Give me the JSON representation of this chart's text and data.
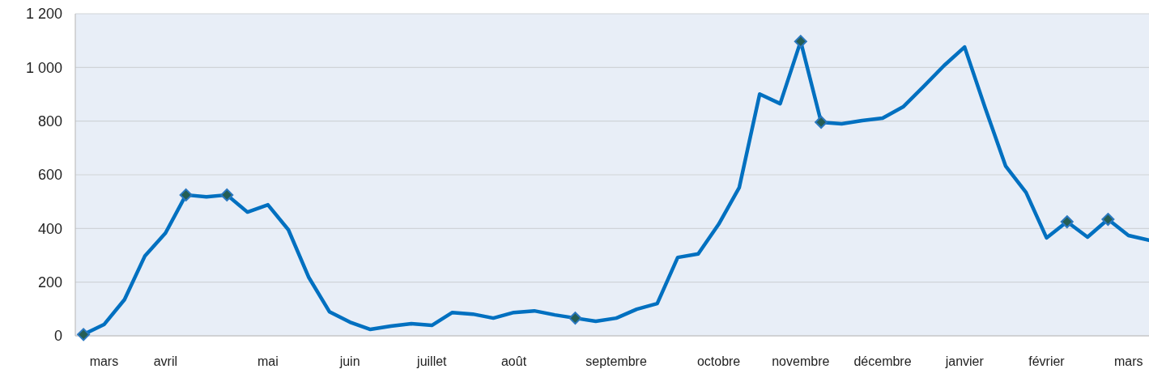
{
  "chart_data": {
    "type": "line",
    "ylim": [
      0,
      1200
    ],
    "yticks": [
      0,
      200,
      400,
      600,
      800,
      {
        "value": 1000,
        "label": "1 000"
      },
      {
        "value": 1200,
        "label": "1 200"
      }
    ],
    "categories": [
      null,
      "mars",
      null,
      null,
      "avril",
      null,
      null,
      null,
      null,
      "mai",
      null,
      null,
      null,
      "juin",
      null,
      null,
      null,
      "juillet",
      null,
      null,
      null,
      "août",
      null,
      null,
      null,
      null,
      "septembre",
      null,
      null,
      null,
      null,
      "octobre",
      null,
      null,
      null,
      "novembre",
      null,
      null,
      null,
      "décembre",
      null,
      null,
      null,
      "janvier",
      null,
      null,
      null,
      "février",
      null,
      null,
      null,
      "mars",
      null
    ],
    "grid": "y",
    "series": [
      {
        "color": "#0070c0",
        "marker": "none",
        "values": [
          5,
          42,
          135,
          298,
          383,
          525,
          518,
          525,
          461,
          488,
          395,
          217,
          90,
          51,
          24,
          36,
          45,
          39,
          87,
          81,
          66,
          87,
          93,
          78,
          66,
          54,
          66,
          99,
          120,
          292,
          305,
          416,
          552,
          901,
          865,
          1097,
          796,
          790,
          802,
          811,
          853,
          929,
          1007,
          1076,
          850,
          633,
          534,
          365,
          425,
          368,
          434,
          374,
          356
        ]
      },
      {
        "type": "scatter",
        "color": "#255e55",
        "marker": "diamond",
        "values": [
          5,
          null,
          null,
          null,
          null,
          525,
          null,
          525,
          null,
          null,
          null,
          null,
          null,
          null,
          null,
          null,
          null,
          null,
          null,
          null,
          null,
          null,
          null,
          null,
          66,
          null,
          null,
          null,
          null,
          null,
          null,
          null,
          null,
          null,
          null,
          1097,
          796,
          null,
          null,
          null,
          null,
          null,
          null,
          null,
          null,
          null,
          null,
          null,
          425,
          null,
          434,
          null,
          null
        ]
      }
    ]
  }
}
